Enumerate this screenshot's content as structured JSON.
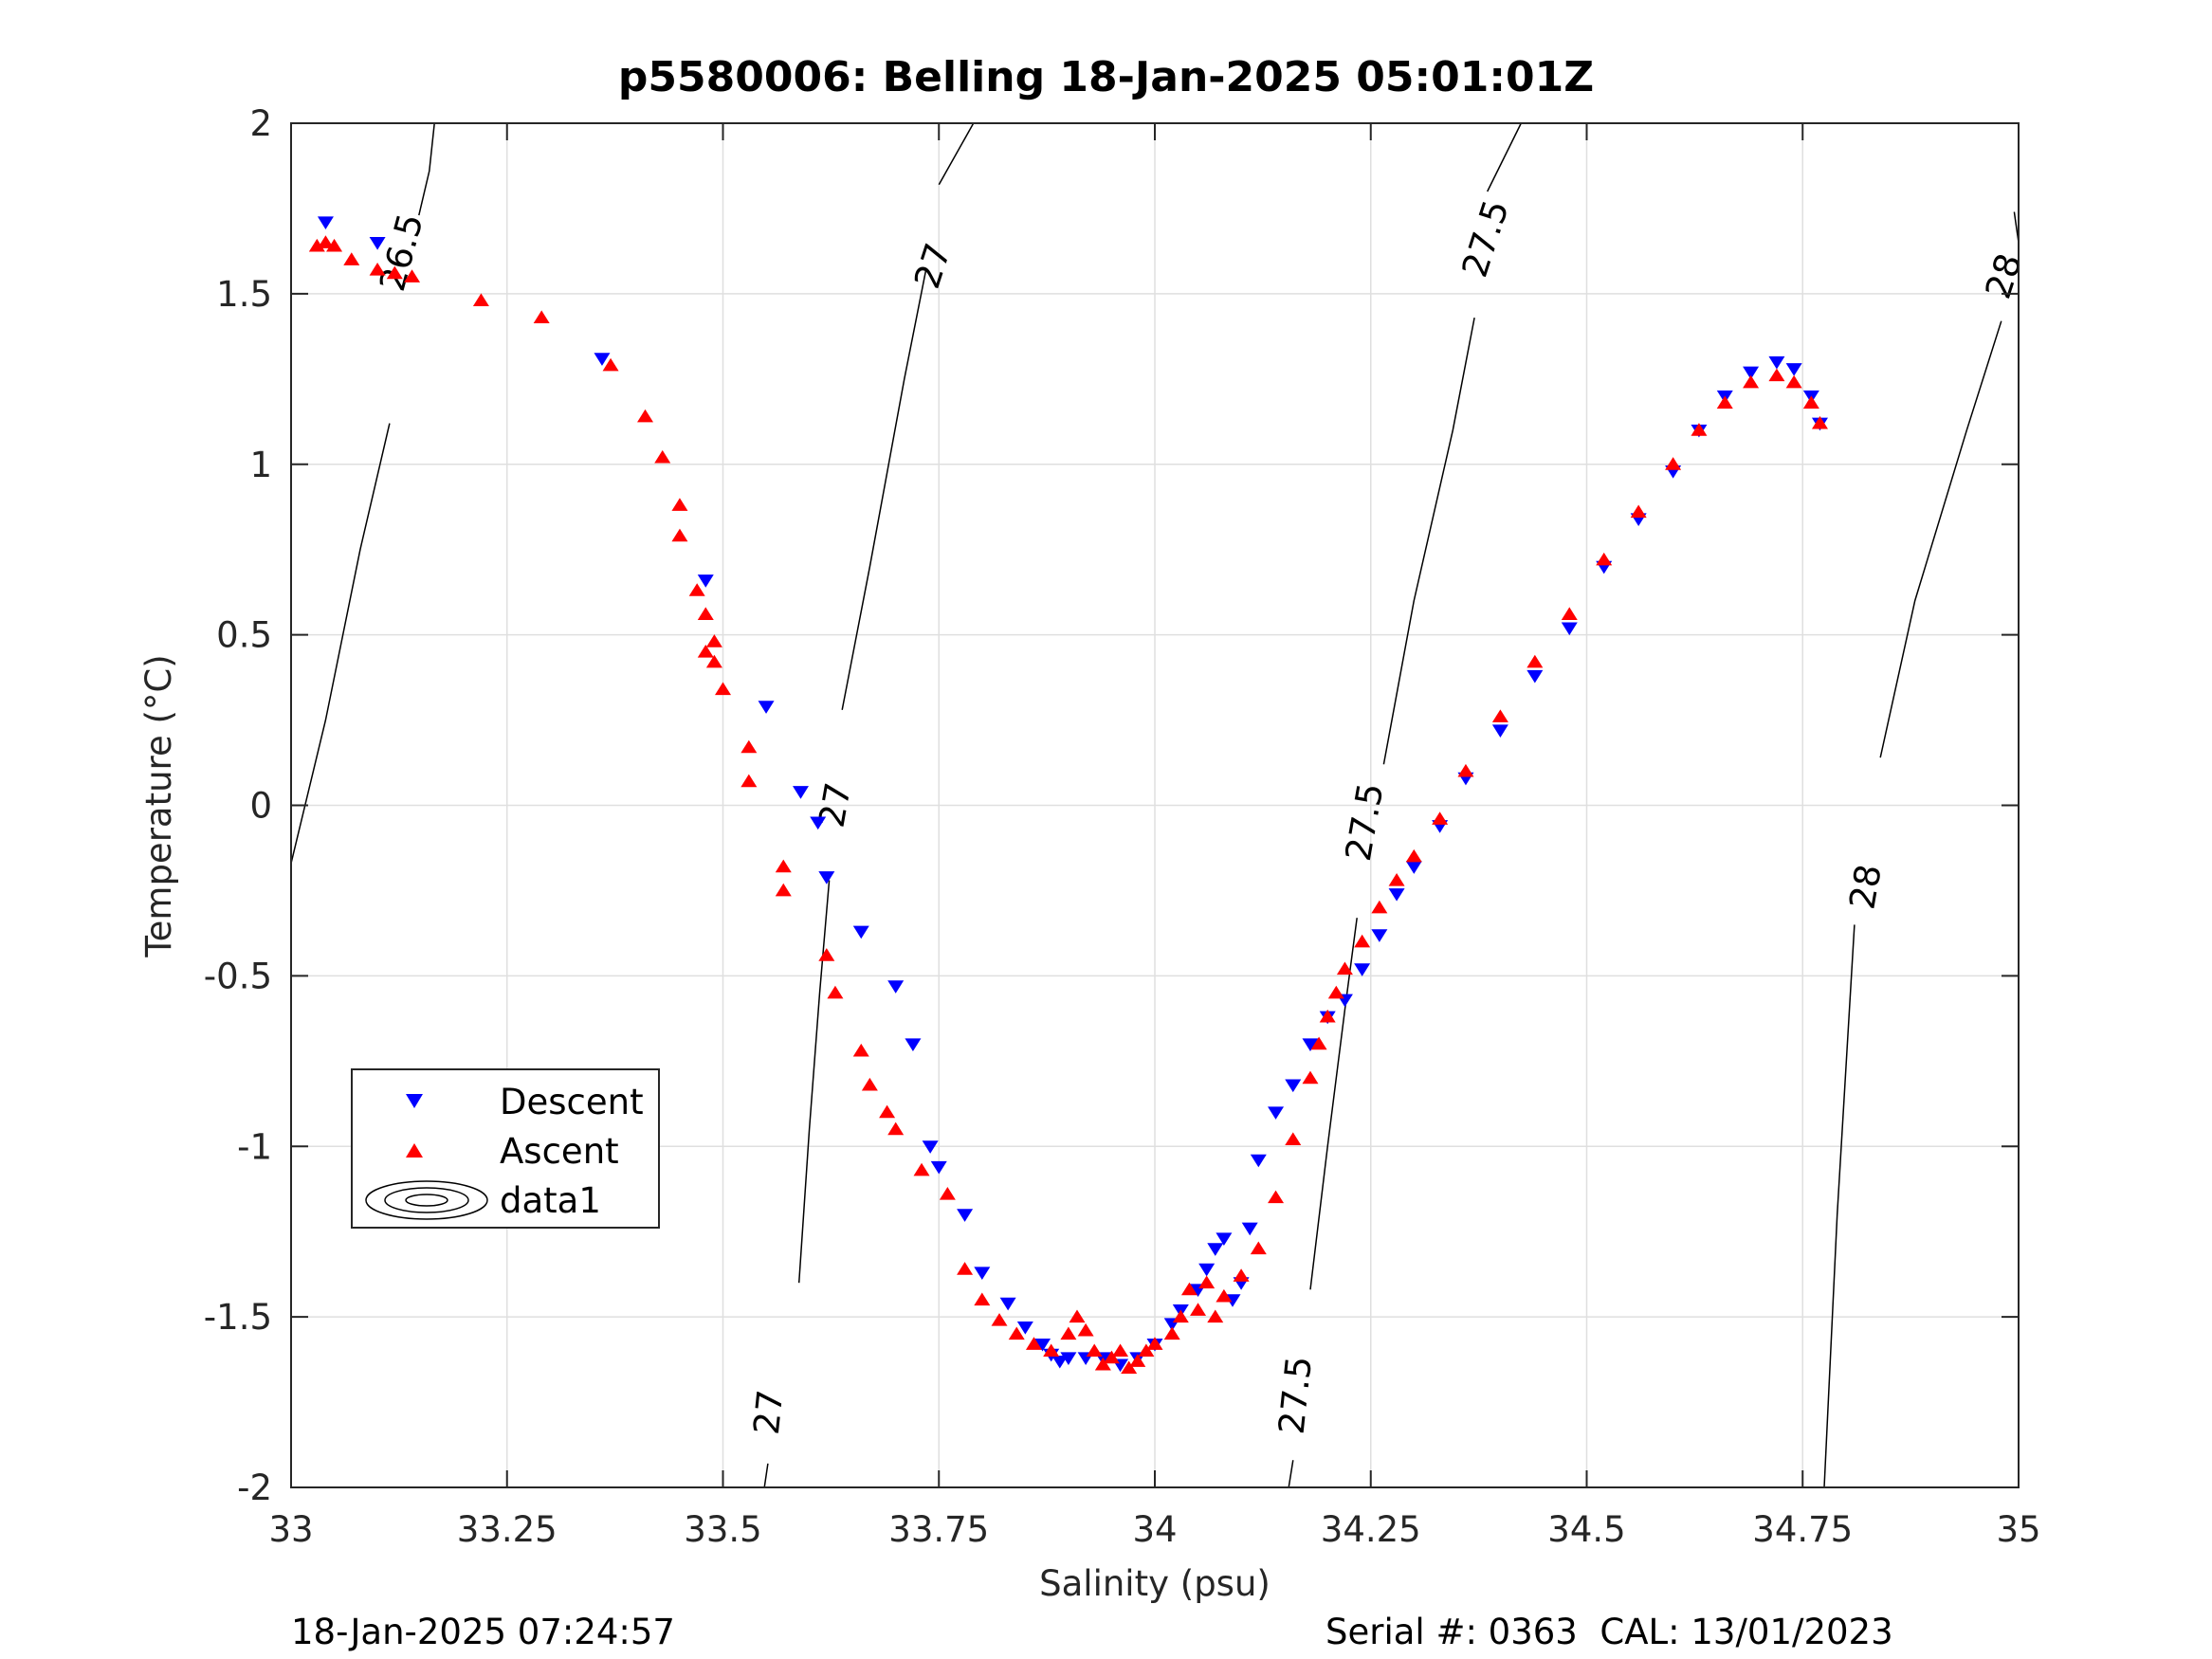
{
  "chart_data": {
    "type": "scatter",
    "title": "p5580006: Belling 18-Jan-2025 05:01:01Z",
    "xlabel": "Salinity (psu)",
    "ylabel": "Temperature (°C)",
    "xlim": [
      33,
      35
    ],
    "ylim": [
      -2,
      2
    ],
    "xticks": [
      33,
      33.25,
      33.5,
      33.75,
      34,
      34.25,
      34.5,
      34.75,
      35
    ],
    "xtick_labels": [
      "33",
      "33.25",
      "33.5",
      "33.75",
      "34",
      "34.25",
      "34.5",
      "34.75",
      "35"
    ],
    "yticks": [
      -2,
      -1.5,
      -1,
      -0.5,
      0,
      0.5,
      1,
      1.5,
      2
    ],
    "ytick_labels": [
      "-2",
      "-1.5",
      "-1",
      "-0.5",
      "0",
      "0.5",
      "1",
      "1.5",
      "2"
    ],
    "grid": true,
    "legend_position": "lower-left",
    "series": [
      {
        "name": "Descent",
        "marker": "triangle-down",
        "color": "#0000ff",
        "x": [
          33.04,
          33.1,
          33.36,
          33.48,
          33.55,
          33.59,
          33.61,
          33.62,
          33.66,
          33.7,
          33.72,
          33.74,
          33.75,
          33.78,
          33.8,
          33.83,
          33.85,
          33.87,
          33.88,
          33.89,
          33.9,
          33.92,
          33.94,
          33.96,
          33.98,
          34.0,
          34.02,
          34.03,
          34.05,
          34.06,
          34.07,
          34.08,
          34.09,
          34.1,
          34.11,
          34.12,
          34.14,
          34.16,
          34.18,
          34.2,
          34.22,
          34.24,
          34.26,
          34.28,
          34.3,
          34.33,
          34.36,
          34.4,
          34.44,
          34.48,
          34.52,
          34.56,
          34.6,
          34.63,
          34.66,
          34.69,
          34.72,
          34.74,
          34.76,
          34.77
        ],
        "y": [
          1.71,
          1.65,
          1.31,
          0.66,
          0.29,
          0.04,
          -0.05,
          -0.21,
          -0.37,
          -0.53,
          -0.7,
          -1.0,
          -1.06,
          -1.2,
          -1.37,
          -1.46,
          -1.53,
          -1.58,
          -1.61,
          -1.63,
          -1.62,
          -1.62,
          -1.62,
          -1.64,
          -1.62,
          -1.58,
          -1.52,
          -1.48,
          -1.42,
          -1.36,
          -1.3,
          -1.27,
          -1.45,
          -1.4,
          -1.24,
          -1.04,
          -0.9,
          -0.82,
          -0.7,
          -0.62,
          -0.57,
          -0.48,
          -0.38,
          -0.26,
          -0.18,
          -0.06,
          0.08,
          0.22,
          0.38,
          0.52,
          0.7,
          0.84,
          0.98,
          1.1,
          1.2,
          1.27,
          1.3,
          1.28,
          1.2,
          1.12
        ]
      },
      {
        "name": "Ascent",
        "marker": "triangle-up",
        "color": "#ff0000",
        "x": [
          33.03,
          33.04,
          33.05,
          33.07,
          33.1,
          33.12,
          33.14,
          33.22,
          33.29,
          33.37,
          33.41,
          33.43,
          33.45,
          33.45,
          33.47,
          33.48,
          33.48,
          33.49,
          33.49,
          33.5,
          33.53,
          33.53,
          33.57,
          33.57,
          33.62,
          33.63,
          33.66,
          33.67,
          33.69,
          33.7,
          33.73,
          33.76,
          33.78,
          33.8,
          33.82,
          33.84,
          33.86,
          33.88,
          33.9,
          33.91,
          33.92,
          33.93,
          33.94,
          33.95,
          33.96,
          33.97,
          33.98,
          33.99,
          34.0,
          34.02,
          34.03,
          34.04,
          34.05,
          34.06,
          34.07,
          34.08,
          34.1,
          34.12,
          34.14,
          34.16,
          34.18,
          34.19,
          34.2,
          34.21,
          34.22,
          34.24,
          34.26,
          34.28,
          34.3,
          34.33,
          34.36,
          34.4,
          34.44,
          34.48,
          34.52,
          34.56,
          34.6,
          34.63,
          34.66,
          34.69,
          34.72,
          34.74,
          34.76,
          34.77
        ],
        "y": [
          1.64,
          1.65,
          1.64,
          1.6,
          1.57,
          1.56,
          1.55,
          1.48,
          1.43,
          1.29,
          1.14,
          1.02,
          0.88,
          0.79,
          0.63,
          0.56,
          0.45,
          0.48,
          0.42,
          0.34,
          0.17,
          0.07,
          -0.18,
          -0.25,
          -0.44,
          -0.55,
          -0.72,
          -0.82,
          -0.9,
          -0.95,
          -1.07,
          -1.14,
          -1.36,
          -1.45,
          -1.51,
          -1.55,
          -1.58,
          -1.6,
          -1.55,
          -1.5,
          -1.54,
          -1.6,
          -1.64,
          -1.62,
          -1.6,
          -1.65,
          -1.63,
          -1.6,
          -1.58,
          -1.55,
          -1.5,
          -1.42,
          -1.48,
          -1.4,
          -1.5,
          -1.44,
          -1.38,
          -1.3,
          -1.15,
          -0.98,
          -0.8,
          -0.7,
          -0.62,
          -0.55,
          -0.48,
          -0.4,
          -0.3,
          -0.22,
          -0.15,
          -0.04,
          0.1,
          0.26,
          0.42,
          0.56,
          0.72,
          0.86,
          1.0,
          1.1,
          1.18,
          1.24,
          1.26,
          1.24,
          1.18,
          1.12
        ]
      }
    ],
    "contour_labels": [
      "26.5",
      "27",
      "27",
      "27",
      "27.5",
      "27.5",
      "27.5",
      "28",
      "28"
    ],
    "legend_entries": [
      "Descent",
      "Ascent",
      "data1"
    ]
  },
  "footer": {
    "left": "18-Jan-2025 07:24:57",
    "right": "Serial #: 0363  CAL: 13/01/2023"
  }
}
